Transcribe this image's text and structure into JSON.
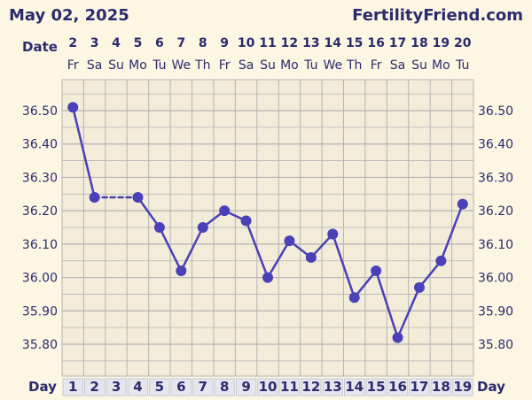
{
  "header": {
    "date": "May 02, 2025",
    "brand": "FertilityFriend.com"
  },
  "labels": {
    "date_row": "Date",
    "day_row": "Day"
  },
  "colors": {
    "background": "#fdf6e3",
    "plot_background": "#f3ecd9",
    "grid": "#b4b4b4",
    "line": "#4a40b8",
    "text": "#2b2b6e",
    "day_cell": "#e6e6ee"
  },
  "chart_data": {
    "type": "line",
    "dates": [
      "2",
      "3",
      "4",
      "5",
      "6",
      "7",
      "8",
      "9",
      "10",
      "11",
      "12",
      "13",
      "14",
      "15",
      "16",
      "17",
      "18",
      "19",
      "20"
    ],
    "weekdays": [
      "Fr",
      "Sa",
      "Su",
      "Mo",
      "Tu",
      "We",
      "Th",
      "Fr",
      "Sa",
      "Su",
      "Mo",
      "Tu",
      "We",
      "Th",
      "Fr",
      "Sa",
      "Su",
      "Mo",
      "Tu"
    ],
    "cycle_days": [
      "1",
      "2",
      "3",
      "4",
      "5",
      "6",
      "7",
      "8",
      "9",
      "10",
      "11",
      "12",
      "13",
      "14",
      "15",
      "16",
      "17",
      "18",
      "19"
    ],
    "yticks": [
      "36.50",
      "36.40",
      "36.30",
      "36.20",
      "36.10",
      "36.00",
      "35.90",
      "35.80"
    ],
    "ylim": [
      35.7,
      36.6
    ],
    "series": [
      {
        "values": [
          36.51,
          36.24,
          null,
          36.24,
          36.15,
          36.02,
          36.15,
          36.2,
          36.17,
          36.0,
          36.11,
          36.06,
          36.13,
          35.94,
          36.02,
          35.82,
          35.97,
          36.05,
          36.22
        ]
      }
    ],
    "grid": true
  }
}
